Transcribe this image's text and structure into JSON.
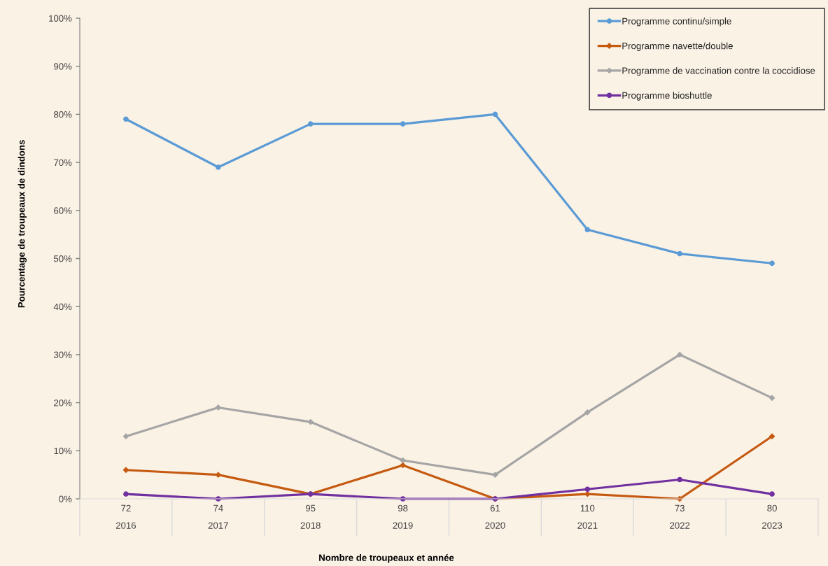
{
  "chart_data": {
    "type": "line",
    "categories": [
      "72\n2016",
      "74\n2017",
      "95\n2018",
      "98\n2019",
      "61\n2020",
      "110\n2021",
      "73\n2022",
      "80\n2023"
    ],
    "series": [
      {
        "name": "Programme continu/simple",
        "color": "#5b9bd5",
        "marker": "circle",
        "values": [
          79,
          69,
          78,
          78,
          80,
          56,
          51,
          49
        ]
      },
      {
        "name": "Programme navette/double",
        "color": "#c55a11",
        "marker": "diamond",
        "values": [
          6,
          5,
          1,
          7,
          0,
          1,
          0,
          13
        ]
      },
      {
        "name": "Programme de vaccination contre la coccidiose",
        "color": "#a5a5a5",
        "marker": "diamond",
        "values": [
          13,
          19,
          16,
          8,
          5,
          18,
          30,
          21
        ]
      },
      {
        "name": "Programme bioshuttle",
        "color": "#7030a0",
        "marker": "circle",
        "values": [
          1,
          0,
          1,
          0,
          0,
          2,
          4,
          1
        ]
      }
    ],
    "ylim": [
      0,
      100
    ],
    "yticks": [
      {
        "value": 0,
        "label": "0%"
      },
      {
        "value": 10,
        "label": "10%"
      },
      {
        "value": 20,
        "label": "20%"
      },
      {
        "value": 30,
        "label": "30%"
      },
      {
        "value": 40,
        "label": "40%"
      },
      {
        "value": 50,
        "label": "50%"
      },
      {
        "value": 60,
        "label": "60%"
      },
      {
        "value": 70,
        "label": "70%"
      },
      {
        "value": 80,
        "label": "80%"
      },
      {
        "value": 90,
        "label": "90%"
      },
      {
        "value": 100,
        "label": "100%"
      }
    ],
    "xlabel": "Nombre de troupeaux et année",
    "ylabel": "Pourcentage de troupeaux de dindons",
    "legend": "top right"
  }
}
